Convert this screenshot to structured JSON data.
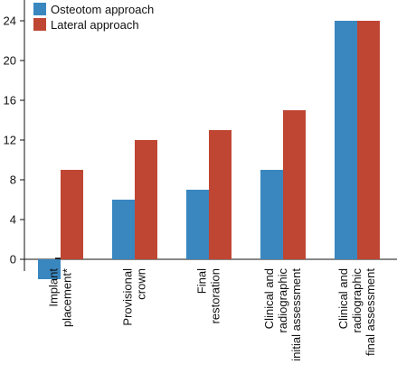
{
  "chart_data": {
    "type": "bar",
    "title": "",
    "xlabel": "",
    "ylabel": "",
    "ylim": [
      0,
      26
    ],
    "yticks": [
      "0",
      "4",
      "8",
      "12",
      "16",
      "20",
      "24"
    ],
    "categories": [
      [
        "Implant",
        "placement*"
      ],
      [
        "Provisional",
        "crown"
      ],
      [
        "Final",
        "restoration"
      ],
      [
        "Clinical and",
        "radiographic",
        "initial assessment"
      ],
      [
        "Clinical and",
        "radiographic",
        "final assessment"
      ]
    ],
    "series": [
      {
        "name": "Osteotom approach",
        "color": "#3a87c0",
        "values": [
          -2,
          6,
          7,
          9,
          24
        ]
      },
      {
        "name": "Lateral approach",
        "color": "#bf4633",
        "values": [
          9,
          12,
          13,
          15,
          24
        ]
      }
    ],
    "legend_position": "top-left",
    "grid": false
  }
}
